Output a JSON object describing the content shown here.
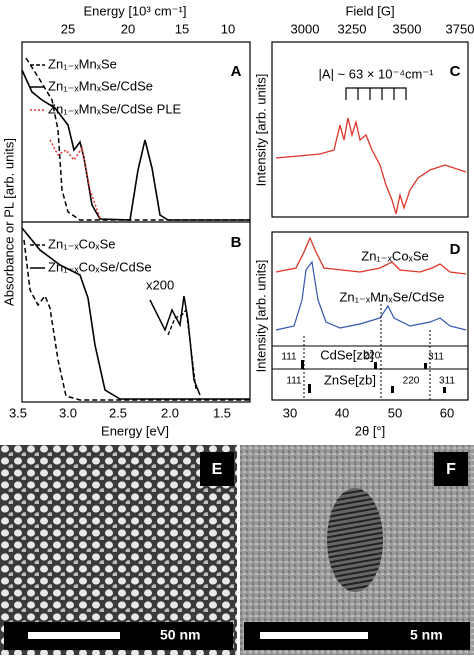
{
  "panel_a": {
    "label": "A",
    "legend": [
      "Zn₁₋ₓMnₓSe",
      "Zn₁₋ₓMnₓSe/CdSe",
      "Zn₁₋ₓMnₓSe/CdSe PLE"
    ]
  },
  "panel_b": {
    "label": "B",
    "legend": [
      "Zn₁₋ₓCoₓSe",
      "Zn₁₋ₓCoₓSe/CdSe"
    ],
    "annotation": "x200"
  },
  "left_axes": {
    "top_title": "Energy [10³ cm⁻¹]",
    "top_ticks": [
      "25",
      "20",
      "15",
      "10"
    ],
    "bottom_title": "Energy [eV]",
    "bottom_ticks": [
      "3.5",
      "3.0",
      "2.5",
      "2.0",
      "1.5"
    ],
    "y_title": "Absorbance or PL [arb. units]"
  },
  "panel_c": {
    "label": "C",
    "annotation": "|A| ~ 63 × 10⁻⁴cm⁻¹",
    "y_title": "Intensity [arb. units]",
    "top_title": "Field [G]",
    "top_ticks": [
      "3000",
      "3250",
      "3500",
      "3750"
    ]
  },
  "panel_d": {
    "label": "D",
    "series": [
      "Zn₁₋ₓCoₓSe",
      "Zn₁₋ₓMnₓSe/CdSe"
    ],
    "y_title": "Intensity [arb. units]",
    "bottom_title": "2θ [°]",
    "bottom_ticks": [
      "30",
      "40",
      "50",
      "60"
    ],
    "cdse": {
      "name": "CdSe[zb]",
      "peaks": [
        "111",
        "220",
        "311"
      ]
    },
    "znse": {
      "name": "ZnSe[zb]",
      "peaks": [
        "111",
        "220",
        "311"
      ]
    }
  },
  "panel_e": {
    "label": "E",
    "scale": "50 nm"
  },
  "panel_f": {
    "label": "F",
    "scale": "5 nm"
  }
}
